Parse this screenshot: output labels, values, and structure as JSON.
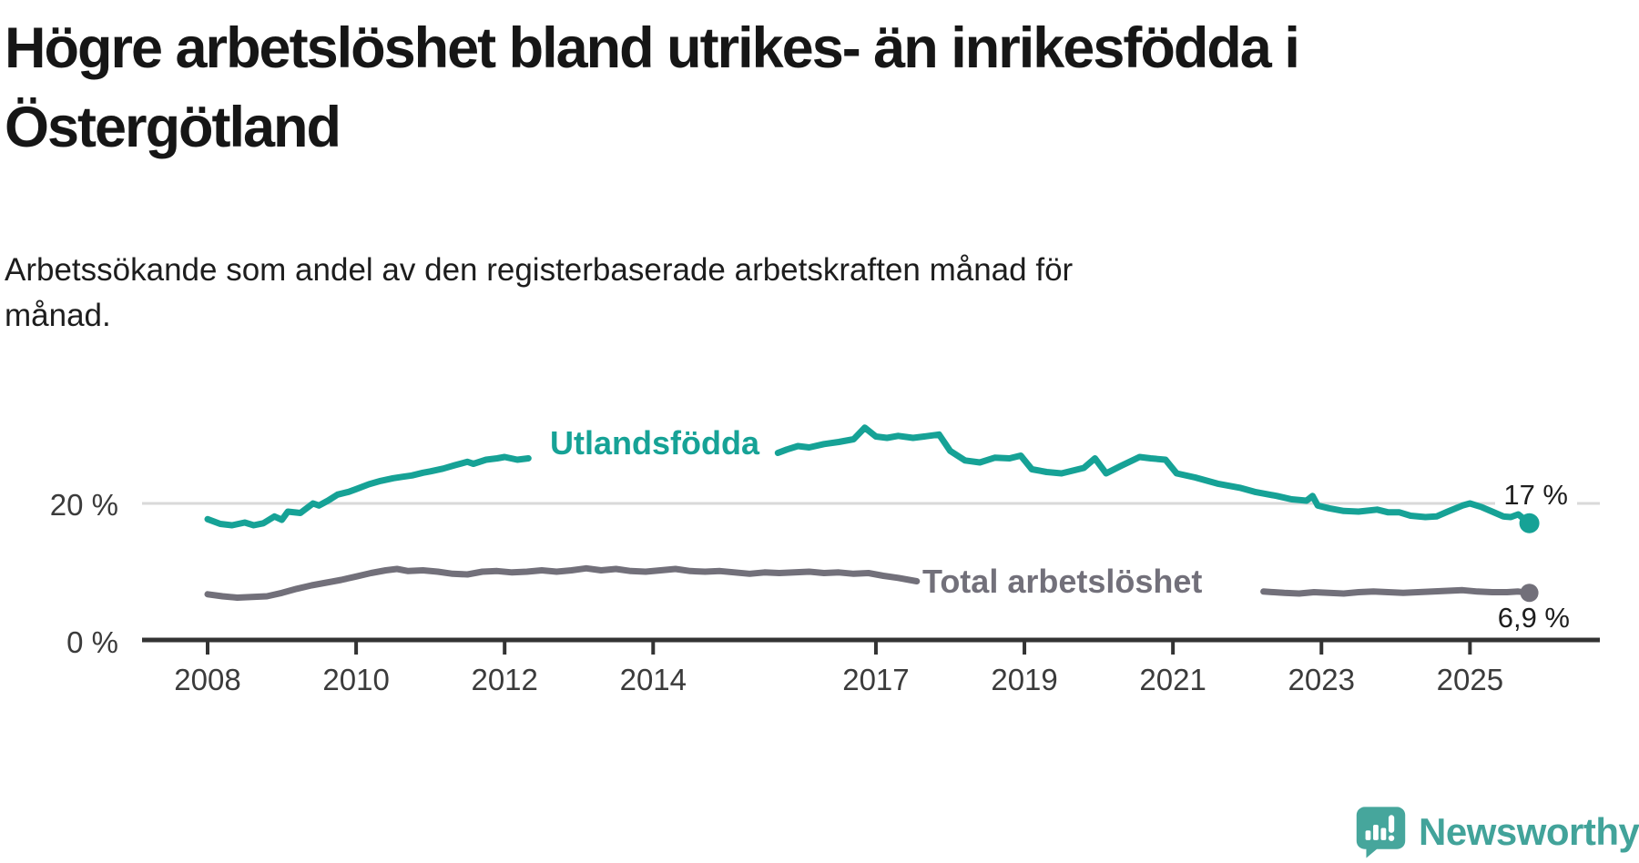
{
  "title": "Högre arbetslöshet bland utrikes- än inrikesfödda i\nÖstergötland",
  "subtitle": "Arbetssökande som andel av den registerbaserade arbetskraften månad för\nmånad.",
  "chart_data": {
    "type": "line",
    "title": "Högre arbetslöshet bland utrikes- än inrikesfödda i Östergötland",
    "subtitle": "Arbetssökande som andel av den registerbaserade arbetskraften månad för månad.",
    "unit": "%",
    "x_axis": {
      "ticks": [
        2008,
        2010,
        2012,
        2014,
        2017,
        2019,
        2021,
        2023,
        2025
      ],
      "range": [
        2007.1,
        2026.7
      ]
    },
    "y_axis": {
      "ticks": [
        {
          "value": 0,
          "label": "0 %"
        },
        {
          "value": 20,
          "label": "20 %"
        }
      ],
      "range": [
        0,
        40
      ],
      "gridline_at": 20
    },
    "series": [
      {
        "name": "Utlandsfödda",
        "color": "#16a296",
        "end_label": "17 %",
        "end_value": 17,
        "label_gap_years": [
          2012.32,
          2015.68
        ],
        "points": [
          [
            2008.0,
            17.7
          ],
          [
            2008.17,
            17.0
          ],
          [
            2008.33,
            16.8
          ],
          [
            2008.5,
            17.2
          ],
          [
            2008.62,
            16.8
          ],
          [
            2008.75,
            17.1
          ],
          [
            2008.9,
            18.1
          ],
          [
            2009.0,
            17.6
          ],
          [
            2009.08,
            18.8
          ],
          [
            2009.25,
            18.6
          ],
          [
            2009.42,
            20.0
          ],
          [
            2009.5,
            19.7
          ],
          [
            2009.62,
            20.4
          ],
          [
            2009.75,
            21.3
          ],
          [
            2009.9,
            21.7
          ],
          [
            2010.0,
            22.1
          ],
          [
            2010.17,
            22.8
          ],
          [
            2010.33,
            23.3
          ],
          [
            2010.5,
            23.7
          ],
          [
            2010.62,
            23.9
          ],
          [
            2010.75,
            24.1
          ],
          [
            2010.9,
            24.5
          ],
          [
            2011.0,
            24.7
          ],
          [
            2011.17,
            25.1
          ],
          [
            2011.33,
            25.6
          ],
          [
            2011.5,
            26.1
          ],
          [
            2011.58,
            25.8
          ],
          [
            2011.75,
            26.4
          ],
          [
            2011.9,
            26.6
          ],
          [
            2012.0,
            26.8
          ],
          [
            2012.17,
            26.4
          ],
          [
            2012.32,
            26.6
          ],
          [
            2015.68,
            27.4
          ],
          [
            2015.8,
            27.9
          ],
          [
            2015.95,
            28.4
          ],
          [
            2016.1,
            28.2
          ],
          [
            2016.3,
            28.7
          ],
          [
            2016.5,
            29.0
          ],
          [
            2016.7,
            29.4
          ],
          [
            2016.85,
            31.1
          ],
          [
            2017.0,
            29.8
          ],
          [
            2017.15,
            29.6
          ],
          [
            2017.3,
            29.9
          ],
          [
            2017.5,
            29.6
          ],
          [
            2017.65,
            29.8
          ],
          [
            2017.85,
            30.1
          ],
          [
            2018.0,
            27.7
          ],
          [
            2018.2,
            26.3
          ],
          [
            2018.4,
            26.0
          ],
          [
            2018.6,
            26.7
          ],
          [
            2018.8,
            26.6
          ],
          [
            2018.95,
            27.0
          ],
          [
            2019.1,
            25.0
          ],
          [
            2019.3,
            24.6
          ],
          [
            2019.5,
            24.4
          ],
          [
            2019.65,
            24.8
          ],
          [
            2019.8,
            25.2
          ],
          [
            2019.95,
            26.6
          ],
          [
            2020.1,
            24.4
          ],
          [
            2020.3,
            25.5
          ],
          [
            2020.55,
            26.8
          ],
          [
            2020.7,
            26.6
          ],
          [
            2020.9,
            26.4
          ],
          [
            2021.05,
            24.4
          ],
          [
            2021.3,
            23.8
          ],
          [
            2021.6,
            22.9
          ],
          [
            2021.9,
            22.3
          ],
          [
            2022.1,
            21.7
          ],
          [
            2022.4,
            21.1
          ],
          [
            2022.6,
            20.6
          ],
          [
            2022.8,
            20.4
          ],
          [
            2022.88,
            21.1
          ],
          [
            2022.95,
            19.7
          ],
          [
            2023.1,
            19.3
          ],
          [
            2023.3,
            18.9
          ],
          [
            2023.5,
            18.8
          ],
          [
            2023.75,
            19.1
          ],
          [
            2023.9,
            18.7
          ],
          [
            2024.05,
            18.7
          ],
          [
            2024.2,
            18.2
          ],
          [
            2024.4,
            18.0
          ],
          [
            2024.55,
            18.1
          ],
          [
            2024.7,
            18.8
          ],
          [
            2024.9,
            19.7
          ],
          [
            2025.0,
            20.0
          ],
          [
            2025.15,
            19.5
          ],
          [
            2025.3,
            18.8
          ],
          [
            2025.45,
            18.1
          ],
          [
            2025.55,
            18.0
          ],
          [
            2025.65,
            18.4
          ],
          [
            2025.8,
            17.1
          ]
        ]
      },
      {
        "name": "Total arbetslöshet",
        "color": "#72707a",
        "end_label": "6,9 %",
        "end_value": 6.9,
        "label_gap_years": [
          2017.55,
          2022.22
        ],
        "points": [
          [
            2008.0,
            6.7
          ],
          [
            2008.2,
            6.4
          ],
          [
            2008.4,
            6.2
          ],
          [
            2008.6,
            6.3
          ],
          [
            2008.8,
            6.4
          ],
          [
            2009.0,
            6.9
          ],
          [
            2009.2,
            7.5
          ],
          [
            2009.4,
            8.0
          ],
          [
            2009.6,
            8.4
          ],
          [
            2009.8,
            8.8
          ],
          [
            2010.0,
            9.3
          ],
          [
            2010.2,
            9.8
          ],
          [
            2010.4,
            10.2
          ],
          [
            2010.55,
            10.4
          ],
          [
            2010.7,
            10.1
          ],
          [
            2010.9,
            10.2
          ],
          [
            2011.1,
            10.0
          ],
          [
            2011.3,
            9.7
          ],
          [
            2011.5,
            9.6
          ],
          [
            2011.7,
            10.0
          ],
          [
            2011.9,
            10.1
          ],
          [
            2012.1,
            9.9
          ],
          [
            2012.3,
            10.0
          ],
          [
            2012.5,
            10.2
          ],
          [
            2012.7,
            10.0
          ],
          [
            2012.9,
            10.2
          ],
          [
            2013.1,
            10.5
          ],
          [
            2013.3,
            10.2
          ],
          [
            2013.5,
            10.4
          ],
          [
            2013.7,
            10.1
          ],
          [
            2013.9,
            10.0
          ],
          [
            2014.1,
            10.2
          ],
          [
            2014.3,
            10.4
          ],
          [
            2014.5,
            10.1
          ],
          [
            2014.7,
            10.0
          ],
          [
            2014.9,
            10.1
          ],
          [
            2015.1,
            9.9
          ],
          [
            2015.3,
            9.7
          ],
          [
            2015.5,
            9.9
          ],
          [
            2015.7,
            9.8
          ],
          [
            2015.9,
            9.9
          ],
          [
            2016.1,
            10.0
          ],
          [
            2016.3,
            9.8
          ],
          [
            2016.5,
            9.9
          ],
          [
            2016.7,
            9.7
          ],
          [
            2016.9,
            9.8
          ],
          [
            2017.1,
            9.4
          ],
          [
            2017.3,
            9.1
          ],
          [
            2017.55,
            8.6
          ],
          [
            2022.22,
            7.1
          ],
          [
            2022.5,
            6.9
          ],
          [
            2022.7,
            6.8
          ],
          [
            2022.9,
            7.0
          ],
          [
            2023.1,
            6.9
          ],
          [
            2023.3,
            6.8
          ],
          [
            2023.5,
            7.0
          ],
          [
            2023.7,
            7.1
          ],
          [
            2023.9,
            7.0
          ],
          [
            2024.1,
            6.9
          ],
          [
            2024.3,
            7.0
          ],
          [
            2024.5,
            7.1
          ],
          [
            2024.7,
            7.2
          ],
          [
            2024.9,
            7.3
          ],
          [
            2025.1,
            7.1
          ],
          [
            2025.3,
            7.0
          ],
          [
            2025.5,
            7.0
          ],
          [
            2025.65,
            7.1
          ],
          [
            2025.8,
            6.9
          ]
        ]
      }
    ],
    "layout_hints": {
      "grid": "single horizontal gridline at 20 %",
      "legend": "inline labels on lines",
      "last_point_markers": true
    }
  },
  "colors": {
    "accent_teal": "#16a296",
    "series_gray": "#72707a",
    "axis": "#333333",
    "gridline": "#d9d9d9",
    "text_dark": "#1d1d1d"
  },
  "branding": {
    "logo_text": "Newsworthy",
    "logo_color": "#42a39a"
  }
}
